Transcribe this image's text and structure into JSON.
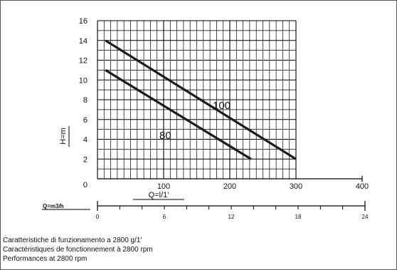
{
  "chart_data": {
    "type": "line",
    "title": "",
    "ylabel": "H=m",
    "xlabel": "Q=l/1'",
    "ylim": [
      0,
      16
    ],
    "xlim": [
      0,
      400
    ],
    "x_ticks": [
      0,
      100,
      200,
      300,
      400
    ],
    "y_ticks": [
      2,
      4,
      6,
      8,
      10,
      12,
      14,
      16
    ],
    "y_zero_label": "0",
    "grid": true,
    "series": [
      {
        "name": "100",
        "x": [
          12,
          300
        ],
        "y": [
          14,
          2
        ]
      },
      {
        "name": "80",
        "x": [
          12,
          232
        ],
        "y": [
          11,
          2
        ]
      }
    ],
    "secondary_axis": {
      "label": "Q=m3/h",
      "ticks": [
        0,
        6,
        12,
        18,
        24
      ]
    },
    "colors": {
      "curve": "#1a1a1a",
      "grid": "#000000",
      "text": "#111111"
    }
  },
  "captions": [
    "Caratteristiche di funzionamento a 2800 g/1'",
    "Caractéristiques de fonctionnement à 2800 rpm",
    "Performances at 2800 rpm"
  ]
}
